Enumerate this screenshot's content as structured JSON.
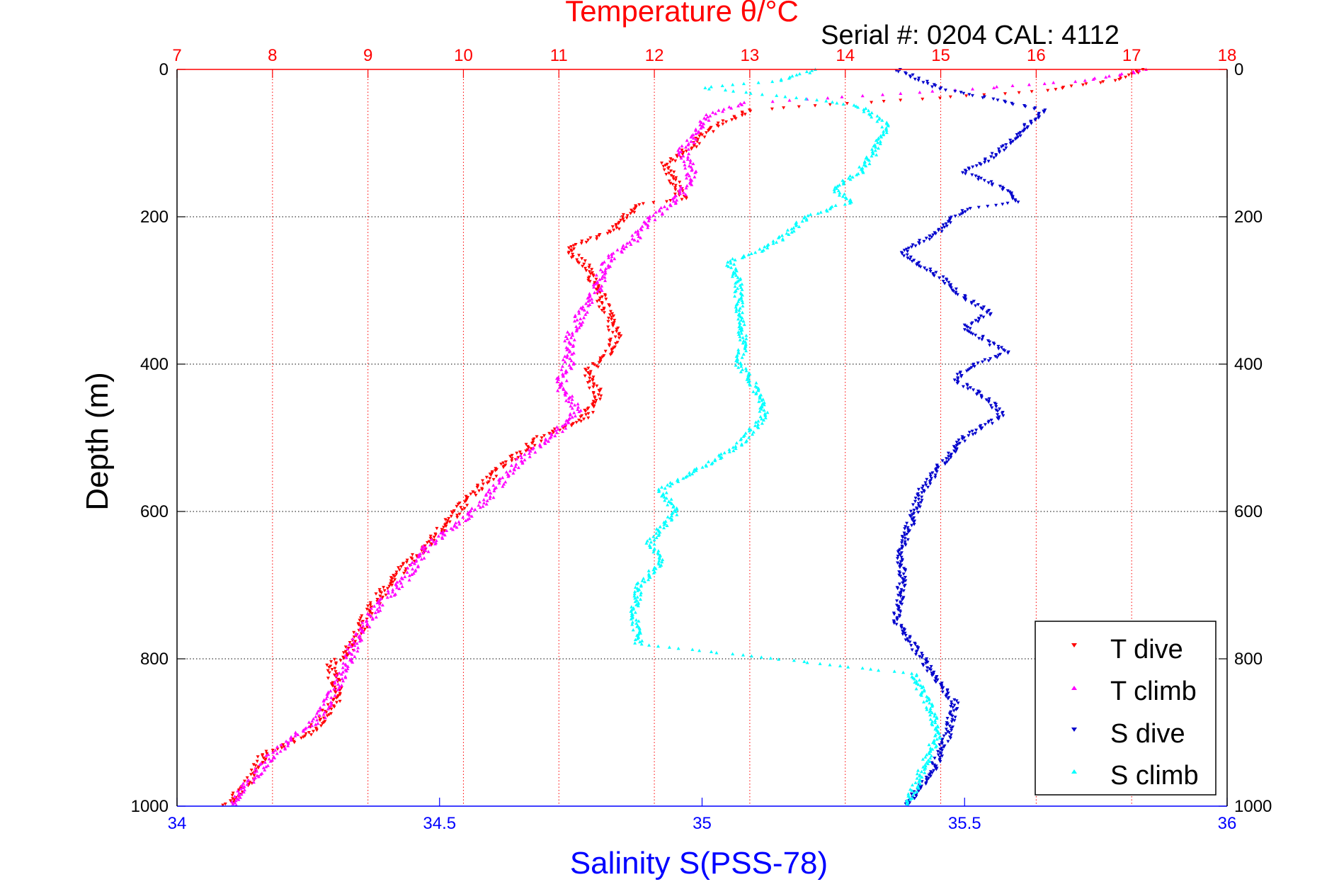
{
  "chart_data": {
    "type": "scatter",
    "title": "Temperature θ/°C",
    "subtitle": "Serial #: 0204  CAL: 4112",
    "ylabel": "Depth (m)",
    "xlabel_bottom": "Salinity S(PSS-78)",
    "xlabel_top": "Temperature θ/°C",
    "ylim": [
      0,
      1000
    ],
    "y_reversed": true,
    "xlim_bottom": [
      34,
      36
    ],
    "xlim_top": [
      7,
      18
    ],
    "yticks": [
      "0",
      "200",
      "400",
      "600",
      "800",
      "1000"
    ],
    "xticks_bottom": [
      "34",
      "34.5",
      "35",
      "35.5",
      "36"
    ],
    "xticks_top": [
      "7",
      "8",
      "9",
      "10",
      "11",
      "12",
      "13",
      "14",
      "15",
      "16",
      "17",
      "18"
    ],
    "grid": true,
    "legend_position": "bottom-right",
    "colors": {
      "temperature_axis": "#ff0000",
      "salinity_axis": "#0000ff",
      "t_dive": "#ff0000",
      "t_climb": "#ff00ff",
      "s_dive": "#0000cc",
      "s_climb": "#00ffff"
    },
    "series": [
      {
        "name": "T dive",
        "axis": "temperature",
        "color": "#ff0000",
        "marker": "down-triangle",
        "points": [
          [
            17.1,
            0
          ],
          [
            16.8,
            15
          ],
          [
            16.0,
            30
          ],
          [
            13.0,
            55
          ],
          [
            12.6,
            80
          ],
          [
            12.4,
            105
          ],
          [
            12.1,
            130
          ],
          [
            12.2,
            150
          ],
          [
            12.3,
            175
          ],
          [
            11.8,
            185
          ],
          [
            11.6,
            215
          ],
          [
            11.1,
            245
          ],
          [
            11.3,
            270
          ],
          [
            11.4,
            295
          ],
          [
            11.5,
            330
          ],
          [
            11.6,
            360
          ],
          [
            11.5,
            390
          ],
          [
            11.3,
            410
          ],
          [
            11.4,
            440
          ],
          [
            11.3,
            470
          ],
          [
            10.8,
            500
          ],
          [
            10.4,
            540
          ],
          [
            10.0,
            590
          ],
          [
            9.8,
            620
          ],
          [
            9.5,
            660
          ],
          [
            9.2,
            700
          ],
          [
            9.0,
            740
          ],
          [
            8.8,
            790
          ],
          [
            8.6,
            810
          ],
          [
            8.7,
            850
          ],
          [
            8.4,
            900
          ],
          [
            7.9,
            930
          ],
          [
            7.8,
            960
          ],
          [
            7.5,
            1000
          ]
        ]
      },
      {
        "name": "T climb",
        "axis": "temperature",
        "color": "#ff00ff",
        "marker": "up-triangle",
        "points": [
          [
            17.2,
            0
          ],
          [
            16.5,
            15
          ],
          [
            15.5,
            25
          ],
          [
            13.0,
            45
          ],
          [
            12.6,
            60
          ],
          [
            12.3,
            110
          ],
          [
            12.4,
            140
          ],
          [
            12.3,
            170
          ],
          [
            11.9,
            210
          ],
          [
            11.8,
            230
          ],
          [
            11.5,
            260
          ],
          [
            11.4,
            300
          ],
          [
            11.2,
            340
          ],
          [
            11.1,
            370
          ],
          [
            11.1,
            400
          ],
          [
            11.0,
            430
          ],
          [
            11.2,
            460
          ],
          [
            11.0,
            490
          ],
          [
            10.6,
            530
          ],
          [
            10.2,
            590
          ],
          [
            9.9,
            620
          ],
          [
            9.6,
            650
          ],
          [
            9.4,
            690
          ],
          [
            9.1,
            730
          ],
          [
            8.9,
            770
          ],
          [
            8.7,
            830
          ],
          [
            8.5,
            880
          ],
          [
            8.3,
            900
          ],
          [
            8.0,
            930
          ],
          [
            7.7,
            975
          ],
          [
            7.6,
            1000
          ]
        ]
      },
      {
        "name": "S dive",
        "axis": "salinity",
        "color": "#0000cc",
        "marker": "down-triangle",
        "points": [
          [
            35.37,
            0
          ],
          [
            35.45,
            25
          ],
          [
            35.55,
            40
          ],
          [
            35.65,
            55
          ],
          [
            35.6,
            90
          ],
          [
            35.55,
            120
          ],
          [
            35.5,
            140
          ],
          [
            35.57,
            160
          ],
          [
            35.6,
            180
          ],
          [
            35.5,
            190
          ],
          [
            35.45,
            220
          ],
          [
            35.38,
            250
          ],
          [
            35.45,
            280
          ],
          [
            35.5,
            310
          ],
          [
            35.55,
            330
          ],
          [
            35.5,
            350
          ],
          [
            35.58,
            385
          ],
          [
            35.52,
            400
          ],
          [
            35.48,
            420
          ],
          [
            35.55,
            450
          ],
          [
            35.57,
            470
          ],
          [
            35.5,
            500
          ],
          [
            35.45,
            540
          ],
          [
            35.42,
            570
          ],
          [
            35.4,
            610
          ],
          [
            35.38,
            650
          ],
          [
            35.38,
            700
          ],
          [
            35.37,
            750
          ],
          [
            35.42,
            800
          ],
          [
            35.45,
            830
          ],
          [
            35.48,
            860
          ],
          [
            35.47,
            900
          ],
          [
            35.44,
            950
          ],
          [
            35.39,
            1000
          ]
        ]
      },
      {
        "name": "S climb",
        "axis": "salinity",
        "color": "#00ffff",
        "marker": "up-triangle",
        "points": [
          [
            35.22,
            0
          ],
          [
            35.15,
            15
          ],
          [
            35.0,
            25
          ],
          [
            35.2,
            40
          ],
          [
            35.3,
            50
          ],
          [
            35.35,
            75
          ],
          [
            35.33,
            110
          ],
          [
            35.3,
            140
          ],
          [
            35.25,
            160
          ],
          [
            35.28,
            180
          ],
          [
            35.2,
            200
          ],
          [
            35.15,
            230
          ],
          [
            35.1,
            250
          ],
          [
            35.05,
            260
          ],
          [
            35.07,
            290
          ],
          [
            35.07,
            330
          ],
          [
            35.08,
            370
          ],
          [
            35.07,
            400
          ],
          [
            35.1,
            430
          ],
          [
            35.12,
            470
          ],
          [
            35.07,
            510
          ],
          [
            35.0,
            540
          ],
          [
            34.92,
            570
          ],
          [
            34.95,
            600
          ],
          [
            34.9,
            640
          ],
          [
            34.92,
            670
          ],
          [
            34.88,
            700
          ],
          [
            34.87,
            740
          ],
          [
            34.88,
            780
          ],
          [
            35.4,
            820
          ],
          [
            35.43,
            860
          ],
          [
            35.45,
            900
          ],
          [
            35.42,
            950
          ],
          [
            35.39,
            1000
          ]
        ]
      }
    ]
  }
}
